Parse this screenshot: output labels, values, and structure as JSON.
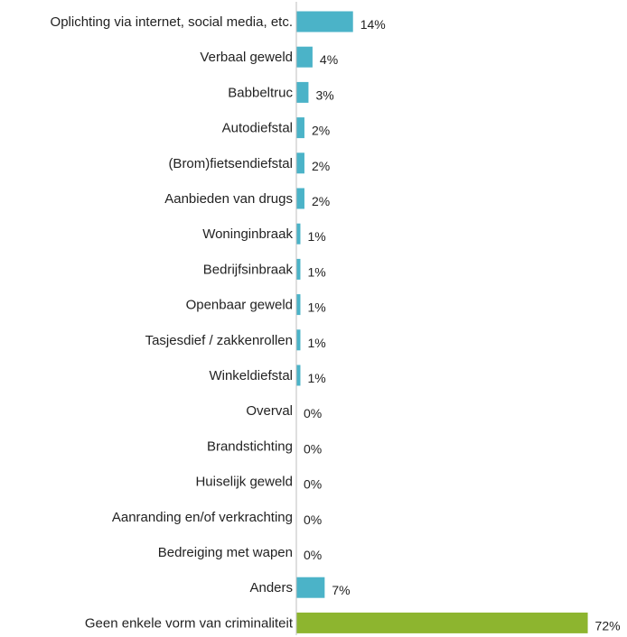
{
  "chart_data": {
    "type": "bar",
    "orientation": "horizontal",
    "title": "",
    "xlabel": "",
    "ylabel": "",
    "xlim": [
      0,
      100
    ],
    "grid": false,
    "legend": "none",
    "colors": {
      "default": "#4bb3c8",
      "highlight": "#8db52f",
      "axis": "#bfbfbf"
    },
    "categories": [
      "Oplichting via internet, social media, etc.",
      "Verbaal geweld",
      "Babbeltruc",
      "Autodiefstal",
      "(Brom)fietsendiefstal",
      "Aanbieden van drugs",
      "Woninginbraak",
      "Bedrijfsinbraak",
      "Openbaar geweld",
      "Tasjesdief / zakkenrollen",
      "Winkeldiefstal",
      "Overval",
      "Brandstichting",
      "Huiselijk geweld",
      "Aanranding en/of verkrachting",
      "Bedreiging met wapen",
      "Anders",
      "Geen enkele vorm van criminaliteit"
    ],
    "values": [
      14,
      4,
      3,
      2,
      2,
      2,
      1,
      1,
      1,
      1,
      1,
      0,
      0,
      0,
      0,
      0,
      7,
      72
    ],
    "value_labels": [
      "14%",
      "4%",
      "3%",
      "2%",
      "2%",
      "2%",
      "1%",
      "1%",
      "1%",
      "1%",
      "1%",
      "0%",
      "0%",
      "0%",
      "0%",
      "0%",
      "7%",
      "72%"
    ],
    "highlight_index": 17
  }
}
